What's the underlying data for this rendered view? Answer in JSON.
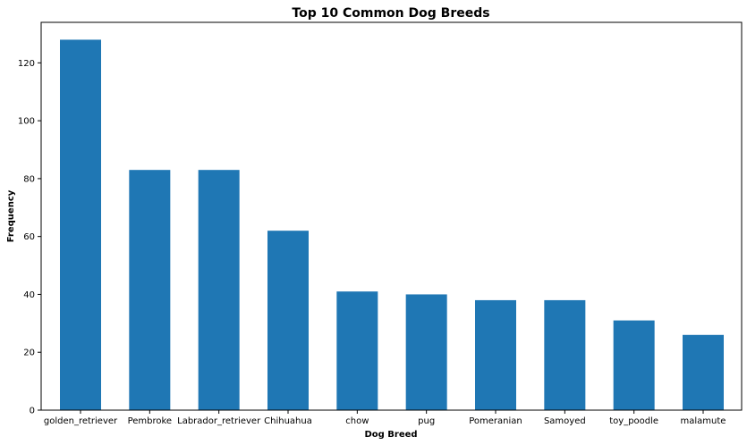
{
  "chart_data": {
    "type": "bar",
    "title": "Top 10 Common Dog Breeds",
    "xlabel": "Dog Breed",
    "ylabel": "Frequency",
    "categories": [
      "golden_retriever",
      "Pembroke",
      "Labrador_retriever",
      "Chihuahua",
      "chow",
      "pug",
      "Pomeranian",
      "Samoyed",
      "toy_poodle",
      "malamute"
    ],
    "values": [
      128,
      83,
      83,
      62,
      41,
      40,
      38,
      38,
      31,
      26
    ],
    "ylim": [
      0,
      134
    ],
    "yticks": [
      "0",
      "20",
      "40",
      "60",
      "80",
      "100",
      "120"
    ],
    "grid": false,
    "bar_color": "#1f77b4"
  }
}
